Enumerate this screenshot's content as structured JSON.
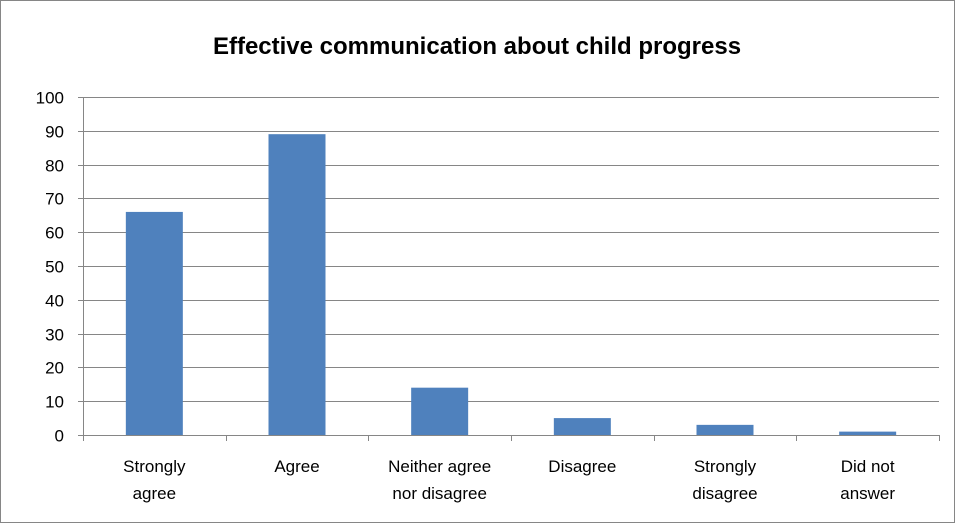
{
  "chart_data": {
    "type": "bar",
    "title": "Effective communication about child progress",
    "categories": [
      [
        "Strongly",
        "agree"
      ],
      [
        "Agree"
      ],
      [
        "Neither agree",
        "nor disagree"
      ],
      [
        "Disagree"
      ],
      [
        "Strongly",
        "disagree"
      ],
      [
        "Did not",
        "answer"
      ]
    ],
    "values": [
      66,
      89,
      14,
      5,
      3,
      1
    ],
    "xlabel": "",
    "ylabel": "",
    "ylim": [
      0,
      100
    ],
    "yticks": [
      0,
      10,
      20,
      30,
      40,
      50,
      60,
      70,
      80,
      90,
      100
    ],
    "grid": true,
    "legend": "none",
    "colors": {
      "bar": "#4F81BD",
      "grid": "#868686",
      "axis": "#868686"
    }
  }
}
